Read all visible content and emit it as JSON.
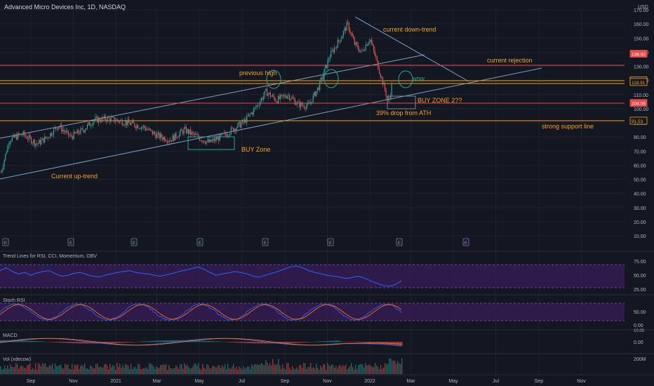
{
  "header": {
    "title": "Advanced Micro Devices Inc, 1D, NASDAQ",
    "currency": "USD"
  },
  "colors": {
    "bg": "#131722",
    "grid": "#1e2230",
    "axis_text": "#b2b5be",
    "up": "#26a69a",
    "down": "#ef5350",
    "trend": "#8fb5e0",
    "orange": "#f7a21b",
    "red_line": "#e84a4a",
    "rsi": "#2962ff",
    "band": "#3a1e5e",
    "macd": "#2962ff",
    "signal": "#ff6d00"
  },
  "chart_data": {
    "type": "candlestick",
    "y_ticks": [
      "170.00",
      "160.00",
      "150.00",
      "140.00",
      "130.00",
      "120.00",
      "110.00",
      "100.00",
      "90.00",
      "80.00",
      "70.00",
      "60.00",
      "50.00",
      "40.00",
      "30.00",
      "20.00",
      "10.00"
    ],
    "x_ticks": [
      "Sep",
      "Nov",
      "2021",
      "Mar",
      "May",
      "Jul",
      "Sep",
      "Nov",
      "2022",
      "Mar",
      "May",
      "Jul",
      "Sep",
      "Nov"
    ],
    "price_badges": [
      {
        "label": "138.92",
        "kind": "red"
      },
      {
        "label": "120.08",
        "kind": "orange"
      },
      {
        "label": "118.91",
        "kind": "orange"
      },
      {
        "label": "104.06",
        "kind": "red"
      },
      {
        "label": "91.53",
        "kind": "orange"
      }
    ],
    "annotations": {
      "current_down_trend": "current down-trend",
      "current_rejection": "current rejection",
      "previous_high": "previous high",
      "wow": "wow",
      "buy_zone_2": "BUY ZONE 2??",
      "drop": "39% drop from ATH",
      "strong_support": "strong support line",
      "buy_zone": "BUY Zone",
      "up_trend": "Current up-trend"
    },
    "price_path": [
      [
        "2020-07-20",
        55
      ],
      [
        "2020-08-01",
        78
      ],
      [
        "2020-08-20",
        82
      ],
      [
        "2020-09-10",
        75
      ],
      [
        "2020-09-25",
        80
      ],
      [
        "2020-10-10",
        88
      ],
      [
        "2020-10-28",
        80
      ],
      [
        "2020-11-15",
        85
      ],
      [
        "2020-12-01",
        92
      ],
      [
        "2020-12-20",
        93
      ],
      [
        "2021-01-10",
        91
      ],
      [
        "2021-01-25",
        89
      ],
      [
        "2021-02-10",
        87
      ],
      [
        "2021-03-01",
        81
      ],
      [
        "2021-03-20",
        78
      ],
      [
        "2021-04-10",
        85
      ],
      [
        "2021-04-28",
        80
      ],
      [
        "2021-05-15",
        76
      ],
      [
        "2021-06-01",
        80
      ],
      [
        "2021-06-20",
        86
      ],
      [
        "2021-07-05",
        91
      ],
      [
        "2021-07-20",
        100
      ],
      [
        "2021-08-05",
        112
      ],
      [
        "2021-08-20",
        106
      ],
      [
        "2021-09-05",
        110
      ],
      [
        "2021-09-20",
        103
      ],
      [
        "2021-10-05",
        102
      ],
      [
        "2021-10-20",
        116
      ],
      [
        "2021-11-05",
        138
      ],
      [
        "2021-11-20",
        150
      ],
      [
        "2021-11-30",
        160
      ],
      [
        "2021-12-10",
        146
      ],
      [
        "2021-12-20",
        140
      ],
      [
        "2022-01-01",
        150
      ],
      [
        "2022-01-10",
        135
      ],
      [
        "2022-01-20",
        118
      ],
      [
        "2022-01-28",
        104
      ],
      [
        "2022-02-02",
        118
      ]
    ],
    "ylim": [
      10,
      170
    ],
    "event_markers": [
      "E",
      "E",
      "E",
      "E",
      "E",
      "E",
      "E"
    ],
    "event_marker_future": "E"
  },
  "indicators": {
    "rsi": {
      "title": "Trend Lines for RSI, CCI, Momentum, OBV",
      "ticks": [
        "75.00",
        "50.00",
        "25.00"
      ],
      "values": [
        62,
        68,
        60,
        55,
        58,
        52,
        57,
        60,
        62,
        55,
        50,
        52,
        56,
        58,
        54,
        50,
        48,
        52,
        55,
        58,
        60,
        62,
        58,
        56,
        55,
        52,
        50,
        53,
        56,
        60,
        63,
        66,
        70,
        65,
        58,
        52,
        55,
        57,
        60,
        58,
        55,
        50,
        48,
        52,
        56,
        60,
        65,
        70,
        72,
        68,
        62,
        58,
        55,
        52,
        50,
        48,
        45,
        47,
        50,
        46,
        40,
        35,
        30,
        28,
        32,
        40
      ]
    },
    "stoch": {
      "title": "Stoch RSI",
      "ticks": [
        "50.00",
        "0.00"
      ]
    },
    "macd": {
      "title": "MACD",
      "ticks": [
        "0.00"
      ],
      "top_label": "10.00"
    },
    "volume": {
      "title": "Vol (xdecow)",
      "ticks": [
        "200M"
      ]
    }
  }
}
